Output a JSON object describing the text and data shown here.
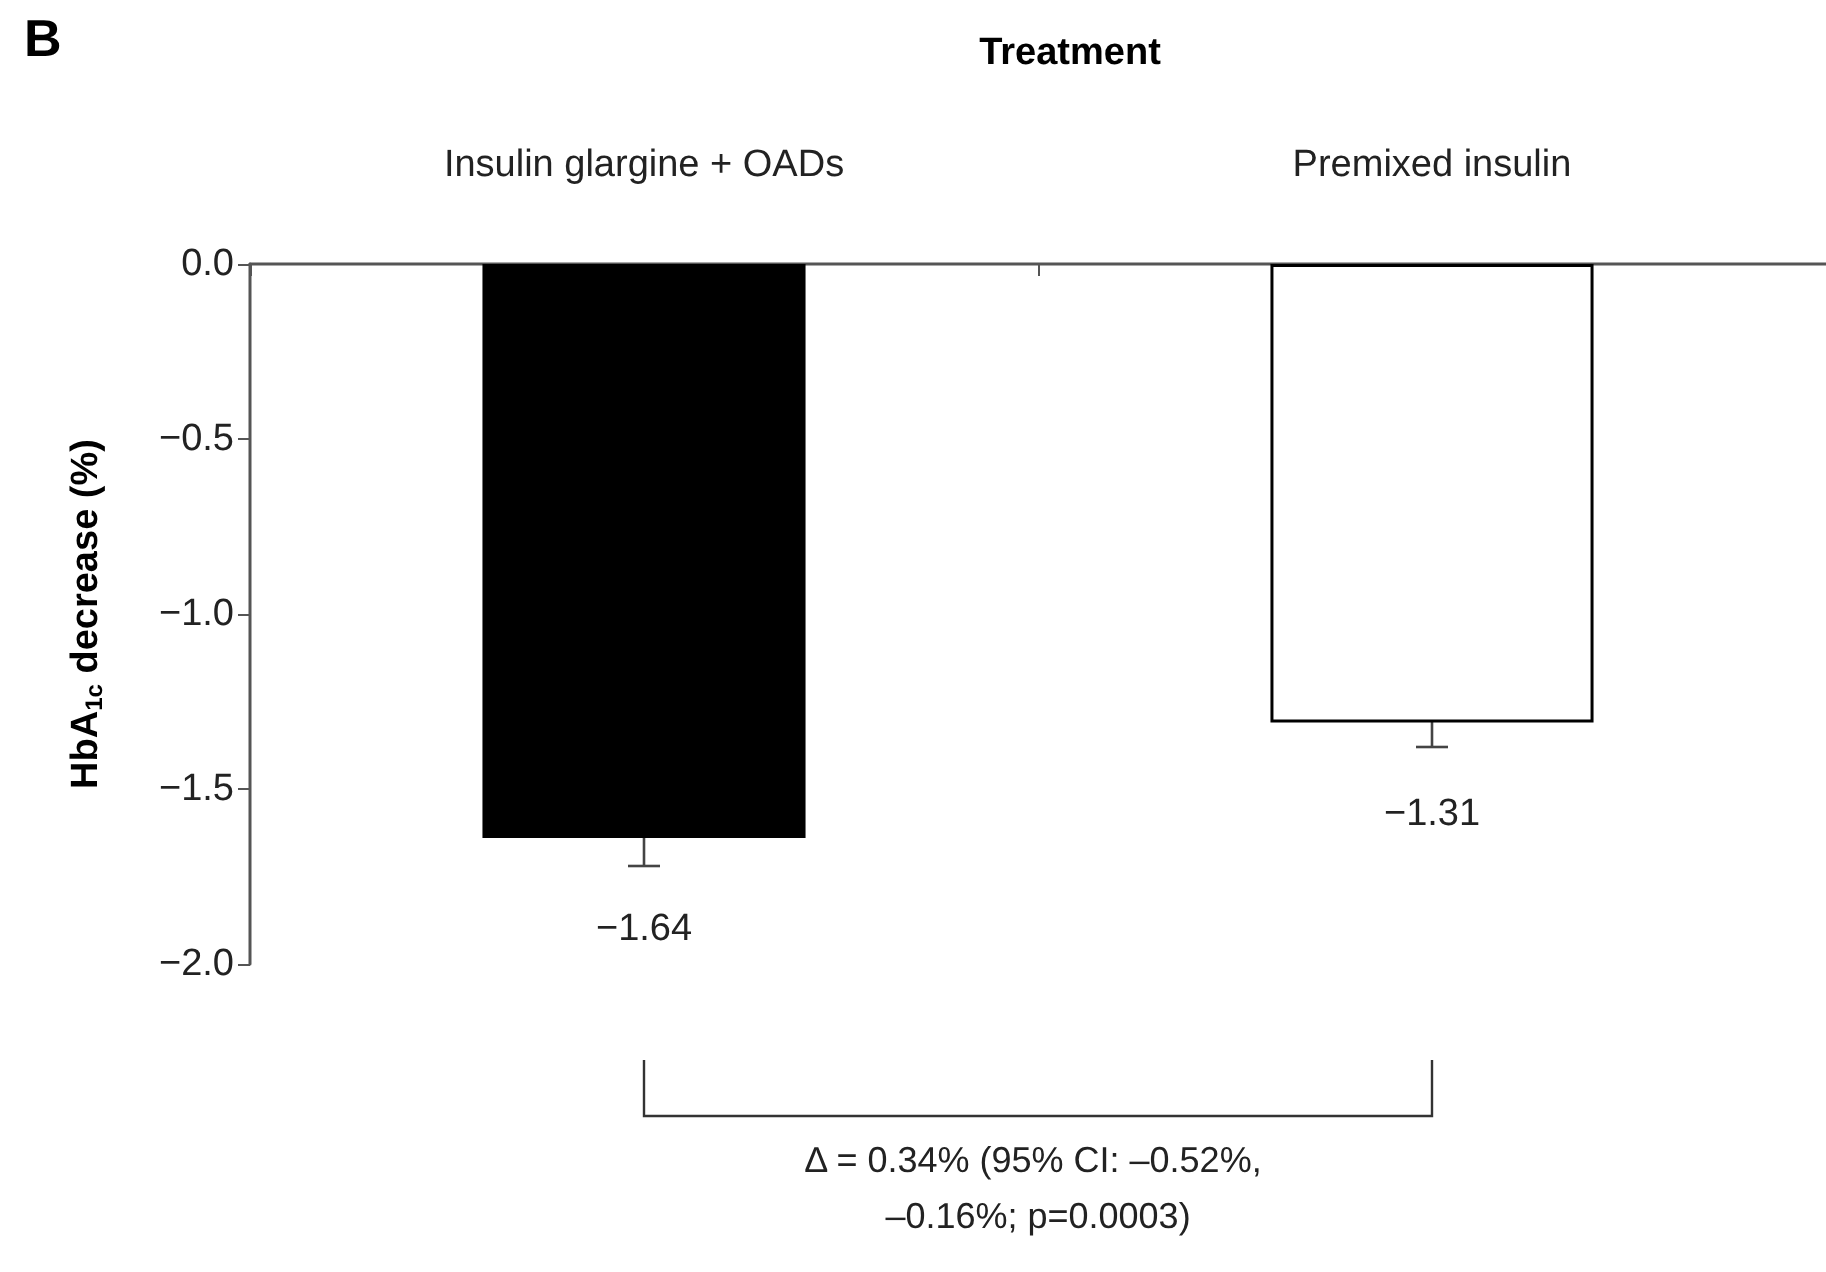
{
  "chart_data": {
    "type": "bar",
    "title": "Treatment",
    "ylabel": "HbA$_{1c}$ decrease (%)",
    "categories": [
      "Insulin glargine + OADs",
      "Premixed insulin"
    ],
    "values": [
      -1.64,
      -1.31
    ],
    "colors": [
      "#000000",
      "#ffffff"
    ],
    "errors": [
      0.08,
      0.07
    ],
    "data_labels": true,
    "ylim": [
      -2,
      0
    ],
    "yticks": [
      {
        "value": 0,
        "label": "0.0"
      },
      {
        "value": -0.5,
        "label": "−0.5"
      },
      {
        "value": -1,
        "label": "−1.0"
      },
      {
        "value": -1.5,
        "label": "−1.5"
      },
      {
        "value": -2,
        "label": "−2.0"
      }
    ],
    "grid": false,
    "annotations": [
      "B",
      "Δ = 0.34% (95% CI: –0.52%, –0.16%; p=0.0003)"
    ]
  }
}
